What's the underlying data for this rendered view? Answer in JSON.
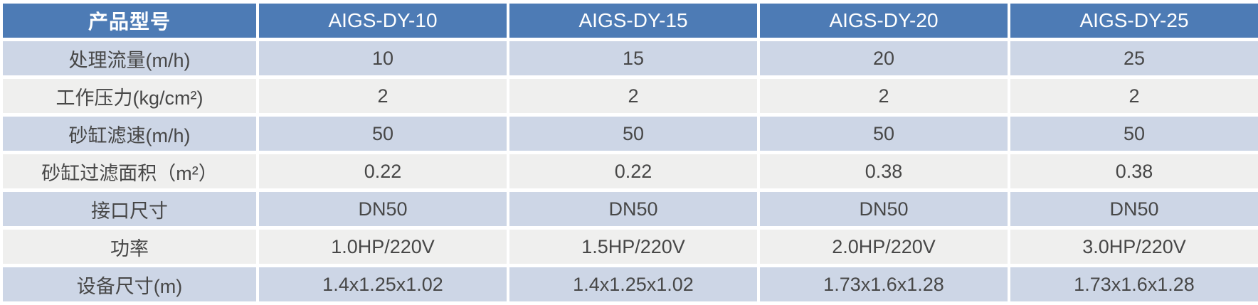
{
  "table": {
    "header": {
      "corner": "产品型号",
      "models": [
        "AIGS-DY-10",
        "AIGS-DY-15",
        "AIGS-DY-20",
        "AIGS-DY-25"
      ]
    },
    "rows": [
      {
        "label": "处理流量(m/h)",
        "values": [
          "10",
          "15",
          "20",
          "25"
        ]
      },
      {
        "label": "工作压力(kg/cm²)",
        "values": [
          "2",
          "2",
          "2",
          "2"
        ]
      },
      {
        "label": "砂缸滤速(m/h)",
        "values": [
          "50",
          "50",
          "50",
          "50"
        ]
      },
      {
        "label": "砂缸过滤面积（m²）",
        "values": [
          "0.22",
          "0.22",
          "0.38",
          "0.38"
        ]
      },
      {
        "label": "接口尺寸",
        "values": [
          "DN50",
          "DN50",
          "DN50",
          "DN50"
        ]
      },
      {
        "label": "功率",
        "values": [
          "1.0HP/220V",
          "1.5HP/220V",
          "2.0HP/220V",
          "3.0HP/220V"
        ]
      },
      {
        "label": "设备尺寸(m)",
        "values": [
          "1.4x1.25x1.02",
          "1.4x1.25x1.02",
          "1.73x1.6x1.28",
          "1.73x1.6x1.28"
        ]
      }
    ]
  },
  "colors": {
    "header_bg": "#4d7bb5",
    "header_text": "#ffffff",
    "row_alt_blue": "#cdd6e6",
    "row_alt_gray": "#efefee",
    "body_text": "#474747",
    "separator": "#ffffff"
  },
  "chart_data": {
    "type": "table",
    "title": "",
    "columns": [
      "产品型号",
      "AIGS-DY-10",
      "AIGS-DY-15",
      "AIGS-DY-20",
      "AIGS-DY-25"
    ],
    "rows": [
      [
        "处理流量(m/h)",
        "10",
        "15",
        "20",
        "25"
      ],
      [
        "工作压力(kg/cm²)",
        "2",
        "2",
        "2",
        "2"
      ],
      [
        "砂缸滤速(m/h)",
        "50",
        "50",
        "50",
        "50"
      ],
      [
        "砂缸过滤面积（m²）",
        "0.22",
        "0.22",
        "0.38",
        "0.38"
      ],
      [
        "接口尺寸",
        "DN50",
        "DN50",
        "DN50",
        "DN50"
      ],
      [
        "功率",
        "1.0HP/220V",
        "1.5HP/220V",
        "2.0HP/220V",
        "3.0HP/220V"
      ],
      [
        "设备尺寸(m)",
        "1.4x1.25x1.02",
        "1.4x1.25x1.02",
        "1.73x1.6x1.28",
        "1.73x1.6x1.28"
      ]
    ]
  }
}
